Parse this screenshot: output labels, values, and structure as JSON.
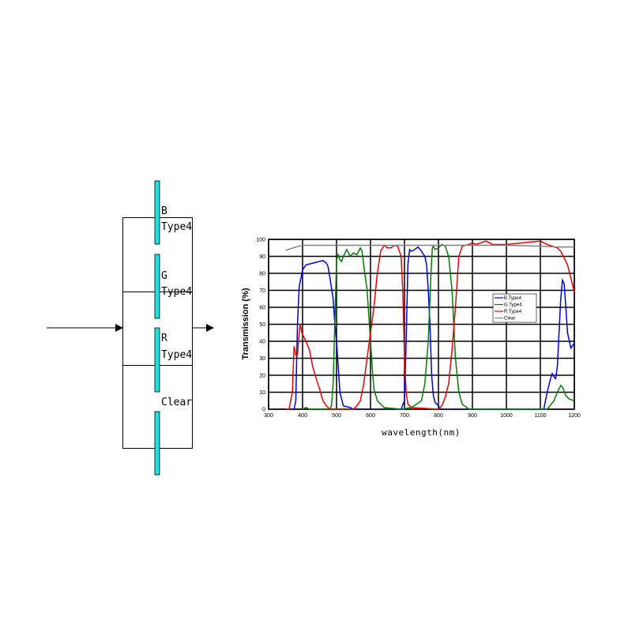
{
  "diagram": {
    "filters": [
      {
        "name": "B",
        "type": "Type4"
      },
      {
        "name": "G",
        "type": "Type4"
      },
      {
        "name": "R",
        "type": "Type4"
      },
      {
        "name": "Clear",
        "type": ""
      }
    ],
    "filter_color": "#22e0e0"
  },
  "chart_data": {
    "type": "line",
    "title": "",
    "xlabel": "wavelength(nm)",
    "ylabel": "Transmission (%)",
    "xlim": [
      300,
      1200
    ],
    "ylim": [
      0,
      100
    ],
    "xticks": [
      300,
      400,
      500,
      600,
      700,
      800,
      900,
      1000,
      1100,
      1200
    ],
    "yticks": [
      0,
      10,
      20,
      30,
      40,
      50,
      60,
      70,
      80,
      90,
      100
    ],
    "grid": true,
    "legend": "right-middle",
    "series": [
      {
        "name": "B Type4",
        "color": "#0000dd",
        "points": [
          [
            350,
            0
          ],
          [
            375,
            0
          ],
          [
            380,
            5
          ],
          [
            385,
            50
          ],
          [
            390,
            72
          ],
          [
            400,
            82
          ],
          [
            410,
            85
          ],
          [
            430,
            86
          ],
          [
            450,
            87
          ],
          [
            460,
            87.5
          ],
          [
            470,
            86
          ],
          [
            475,
            84
          ],
          [
            480,
            78
          ],
          [
            490,
            65
          ],
          [
            495,
            50
          ],
          [
            500,
            40
          ],
          [
            505,
            25
          ],
          [
            510,
            10
          ],
          [
            520,
            2
          ],
          [
            540,
            1
          ],
          [
            550,
            0
          ],
          [
            690,
            0
          ],
          [
            700,
            5
          ],
          [
            705,
            40
          ],
          [
            710,
            85
          ],
          [
            715,
            94
          ],
          [
            720,
            93
          ],
          [
            730,
            94
          ],
          [
            740,
            95.5
          ],
          [
            750,
            93
          ],
          [
            760,
            90
          ],
          [
            765,
            85
          ],
          [
            770,
            70
          ],
          [
            775,
            50
          ],
          [
            780,
            20
          ],
          [
            785,
            8
          ],
          [
            790,
            4
          ],
          [
            800,
            2
          ],
          [
            805,
            0
          ],
          [
            1110,
            0
          ],
          [
            1120,
            10
          ],
          [
            1130,
            18
          ],
          [
            1135,
            21
          ],
          [
            1140,
            19
          ],
          [
            1145,
            18
          ],
          [
            1150,
            25
          ],
          [
            1155,
            45
          ],
          [
            1160,
            65
          ],
          [
            1165,
            76
          ],
          [
            1170,
            74
          ],
          [
            1175,
            60
          ],
          [
            1180,
            45
          ],
          [
            1190,
            36
          ],
          [
            1200,
            39
          ]
        ]
      },
      {
        "name": "G Type4",
        "color": "#008000",
        "points": [
          [
            400,
            0
          ],
          [
            410,
            1
          ],
          [
            420,
            0
          ],
          [
            480,
            0
          ],
          [
            485,
            2
          ],
          [
            490,
            15
          ],
          [
            495,
            50
          ],
          [
            500,
            88
          ],
          [
            505,
            91
          ],
          [
            510,
            88
          ],
          [
            515,
            87
          ],
          [
            520,
            90
          ],
          [
            530,
            94
          ],
          [
            540,
            90
          ],
          [
            550,
            92
          ],
          [
            560,
            91
          ],
          [
            570,
            95
          ],
          [
            575,
            93
          ],
          [
            580,
            85
          ],
          [
            590,
            70
          ],
          [
            595,
            55
          ],
          [
            600,
            40
          ],
          [
            605,
            25
          ],
          [
            610,
            12
          ],
          [
            620,
            5
          ],
          [
            640,
            1
          ],
          [
            690,
            0
          ],
          [
            720,
            1
          ],
          [
            750,
            5
          ],
          [
            760,
            15
          ],
          [
            770,
            40
          ],
          [
            778,
            80
          ],
          [
            782,
            95
          ],
          [
            785,
            96
          ],
          [
            790,
            94
          ],
          [
            800,
            95
          ],
          [
            810,
            97
          ],
          [
            820,
            96
          ],
          [
            830,
            90
          ],
          [
            840,
            70
          ],
          [
            845,
            50
          ],
          [
            850,
            30
          ],
          [
            860,
            10
          ],
          [
            870,
            3
          ],
          [
            890,
            0
          ],
          [
            1120,
            0
          ],
          [
            1140,
            5
          ],
          [
            1150,
            10
          ],
          [
            1160,
            14
          ],
          [
            1165,
            13
          ],
          [
            1175,
            8
          ],
          [
            1185,
            6
          ],
          [
            1200,
            5
          ]
        ]
      },
      {
        "name": "R Type4",
        "color": "#ee0000",
        "points": [
          [
            350,
            0
          ],
          [
            360,
            0
          ],
          [
            370,
            10
          ],
          [
            375,
            37
          ],
          [
            380,
            32
          ],
          [
            385,
            32
          ],
          [
            390,
            45
          ],
          [
            393,
            50
          ],
          [
            398,
            45
          ],
          [
            410,
            40
          ],
          [
            420,
            35
          ],
          [
            430,
            25
          ],
          [
            440,
            18
          ],
          [
            450,
            12
          ],
          [
            460,
            5
          ],
          [
            470,
            2
          ],
          [
            480,
            0
          ],
          [
            550,
            0
          ],
          [
            560,
            2
          ],
          [
            570,
            5
          ],
          [
            580,
            15
          ],
          [
            590,
            30
          ],
          [
            600,
            45
          ],
          [
            610,
            60
          ],
          [
            620,
            80
          ],
          [
            630,
            93
          ],
          [
            640,
            96.5
          ],
          [
            650,
            95
          ],
          [
            660,
            95
          ],
          [
            670,
            96.5
          ],
          [
            680,
            96
          ],
          [
            690,
            90
          ],
          [
            695,
            70
          ],
          [
            700,
            30
          ],
          [
            705,
            10
          ],
          [
            710,
            3
          ],
          [
            720,
            1
          ],
          [
            800,
            0
          ],
          [
            810,
            2
          ],
          [
            820,
            7
          ],
          [
            830,
            15
          ],
          [
            840,
            35
          ],
          [
            850,
            60
          ],
          [
            860,
            90
          ],
          [
            870,
            96
          ],
          [
            890,
            97
          ],
          [
            900,
            98
          ],
          [
            910,
            97
          ],
          [
            940,
            99
          ],
          [
            960,
            97
          ],
          [
            1000,
            97
          ],
          [
            1050,
            98
          ],
          [
            1100,
            99
          ],
          [
            1120,
            97
          ],
          [
            1150,
            95
          ],
          [
            1160,
            93
          ],
          [
            1180,
            85
          ],
          [
            1200,
            69
          ]
        ]
      },
      {
        "name": "Clear",
        "color": "#808080",
        "points": [
          [
            350,
            93.5
          ],
          [
            380,
            95.5
          ],
          [
            400,
            96.5
          ],
          [
            500,
            96.5
          ],
          [
            700,
            96.5
          ],
          [
            1000,
            96.5
          ],
          [
            1100,
            96
          ],
          [
            1150,
            95.5
          ],
          [
            1200,
            95.5
          ]
        ]
      }
    ]
  }
}
